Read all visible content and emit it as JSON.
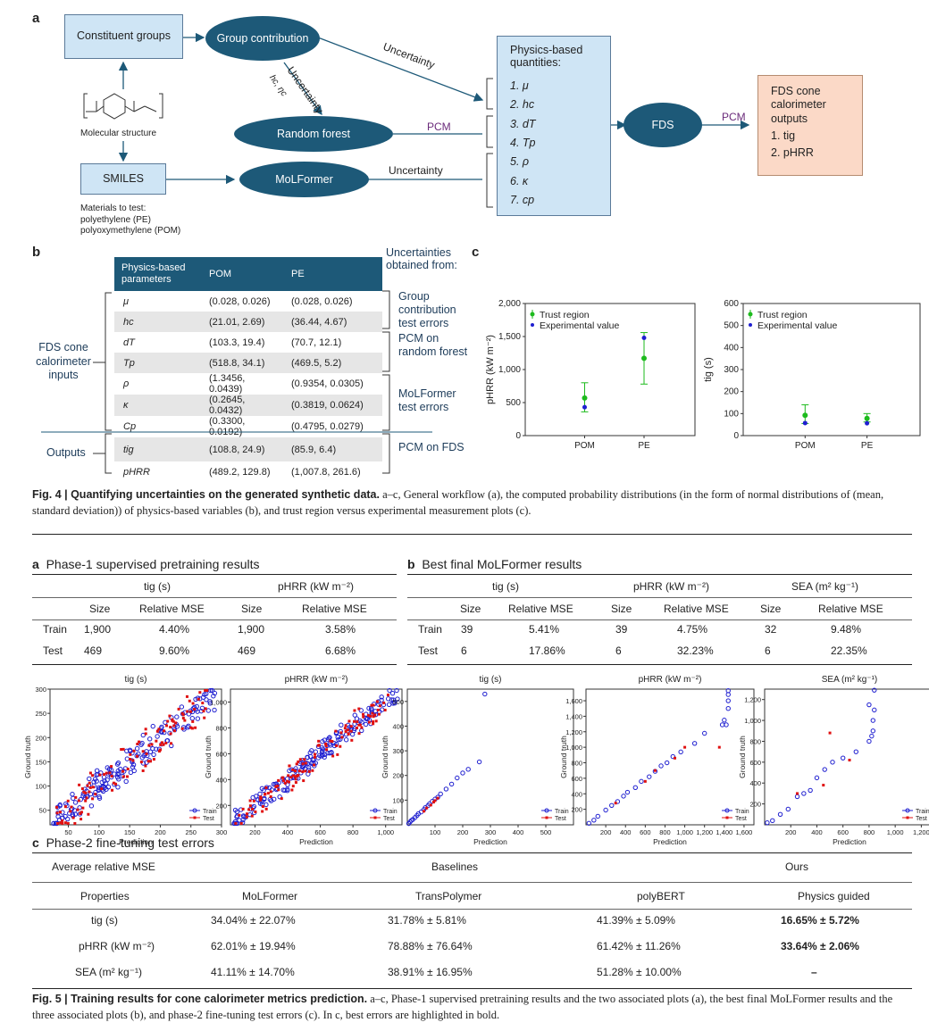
{
  "fig4": {
    "a": {
      "label": "a",
      "constituent": "Constituent groups",
      "group_contrib": "Group contribution",
      "molecular": "Molecular structure",
      "smiles": "SMILES",
      "materials_title": "Materials to test:",
      "materials": [
        "polyethylene (PE)",
        "polyoxymethylene (POM)"
      ],
      "random_forest": "Random forest",
      "molformer": "MoLFormer",
      "uncertainty": "Uncertainty",
      "hc_eta": "hc, ηc",
      "pcm": "PCM",
      "physics_title": "Physics-based quantities:",
      "physics": [
        "1.  μ",
        "2.  hc",
        "3.  dT",
        "4.  Tp",
        "5.  ρ",
        "6.  κ",
        "7.  cp"
      ],
      "fds": "FDS",
      "fds_out_title": "FDS cone calorimeter outputs",
      "fds_outputs": [
        "1.  tig",
        "2.  pHRR"
      ]
    },
    "b": {
      "label": "b",
      "header": [
        "Physics-based parameters",
        "POM",
        "PE"
      ],
      "rows": [
        [
          "μ",
          "(0.028, 0.026)",
          "(0.028, 0.026)"
        ],
        [
          "hc",
          "(21.01, 2.69)",
          "(36.44, 4.67)"
        ],
        [
          "dT",
          "(103.3, 19.4)",
          "(70.7, 12.1)"
        ],
        [
          "Tp",
          "(518.8, 34.1)",
          "(469.5, 5.2)"
        ],
        [
          "ρ",
          "(1.3456, 0.0439)",
          "(0.9354, 0.0305)"
        ],
        [
          "κ",
          "(0.2645, 0.0432)",
          "(0.3819, 0.0624)"
        ],
        [
          "Cp",
          "(0.3300, 0.0192)",
          "(0.4795, 0.0279)"
        ],
        [
          "tig",
          "(108.8, 24.9)",
          "(85.9, 6.4)"
        ],
        [
          "pHRR",
          "(489.2, 129.8)",
          "(1,007.8, 261.6)"
        ]
      ],
      "left_inputs": "FDS cone calorimeter inputs",
      "left_outputs": "Outputs",
      "unc_title": "Uncertainties obtained from:",
      "unc_groups": [
        "Group contribution test errors",
        "PCM on random forest",
        "MoLFormer test errors",
        "PCM on FDS"
      ]
    },
    "c": {
      "label": "c",
      "legend": [
        "Trust region",
        "Experimental value"
      ]
    },
    "caption_bold": "Fig. 4 | Quantifying uncertainties on the generated synthetic data.",
    "caption": " a–c, General workflow (a), the computed probability distributions (in the form of normal distributions of (mean, standard deviation)) of physics-based variables (b), and trust region versus experimental measurement plots (c)."
  },
  "chart_data": [
    {
      "type": "scatter",
      "panel": "4c-left",
      "ylabel": "pHRR (kW m⁻²)",
      "categories": [
        "POM",
        "PE"
      ],
      "ylim": [
        0,
        2000
      ],
      "yticks": [
        "0",
        "500",
        "1,000",
        "1,500",
        "2,000"
      ],
      "trust_mean": [
        570,
        1170
      ],
      "trust_low": [
        360,
        780
      ],
      "trust_high": [
        800,
        1560
      ],
      "experimental": [
        430,
        1480
      ],
      "colors": {
        "trust": "#1dbb1d",
        "exp": "#1f1fd0"
      }
    },
    {
      "type": "scatter",
      "panel": "4c-right",
      "ylabel": "tig (s)",
      "categories": [
        "POM",
        "PE"
      ],
      "ylim": [
        0,
        600
      ],
      "yticks": [
        "0",
        "100",
        "200",
        "300",
        "400",
        "500",
        "600"
      ],
      "trust_mean": [
        92,
        78
      ],
      "trust_low": [
        55,
        62
      ],
      "trust_high": [
        140,
        100
      ],
      "experimental": [
        57,
        56
      ],
      "colors": {
        "trust": "#1dbb1d",
        "exp": "#1f1fd0"
      }
    },
    {
      "type": "scatter",
      "panel": "5a-tig",
      "title": "tig (s)",
      "xlabel": "Prediction",
      "ylabel": "Ground truth",
      "xlim": [
        20,
        300
      ],
      "ylim": [
        20,
        300
      ],
      "xticks": [
        50,
        100,
        150,
        200,
        250,
        300
      ],
      "yticks": [
        50,
        100,
        150,
        200,
        250,
        300
      ],
      "xtick_labels": [
        "50",
        "100",
        "150",
        "200",
        "250",
        "300"
      ],
      "ytick_labels": [
        "50",
        "100",
        "150",
        "200",
        "250",
        "300"
      ],
      "legend": [
        "Train",
        "Test"
      ],
      "spread": 0.1,
      "n_train": 180,
      "n_test": 120
    },
    {
      "type": "scatter",
      "panel": "5a-phrr",
      "title": "pHRR (kW m⁻²)",
      "xlabel": "Prediction",
      "ylabel": "Ground truth",
      "xlim": [
        50,
        1100
      ],
      "ylim": [
        50,
        1100
      ],
      "xticks": [
        200,
        400,
        600,
        800,
        1000
      ],
      "yticks": [
        200,
        400,
        600,
        800,
        1000
      ],
      "xtick_labels": [
        "200",
        "400",
        "600",
        "800",
        "1,000"
      ],
      "ytick_labels": [
        "200",
        "400",
        "600",
        "800",
        "1,000"
      ],
      "legend": [
        "Train",
        "Test"
      ],
      "spread": 0.07,
      "n_train": 180,
      "n_test": 120
    },
    {
      "type": "scatter",
      "panel": "5b-tig",
      "title": "tig (s)",
      "xlabel": "Prediction",
      "ylabel": "Ground truth",
      "xlim": [
        0,
        600
      ],
      "ylim": [
        0,
        550
      ],
      "xticks": [
        100,
        200,
        300,
        400,
        500
      ],
      "yticks": [
        100,
        200,
        300,
        400,
        500
      ],
      "xtick_labels": [
        "100",
        "200",
        "300",
        "400",
        "500"
      ],
      "ytick_labels": [
        "100",
        "200",
        "300",
        "400",
        "500"
      ],
      "legend": [
        "Train",
        "Test"
      ],
      "train": [
        [
          5,
          5
        ],
        [
          10,
          12
        ],
        [
          15,
          18
        ],
        [
          20,
          22
        ],
        [
          28,
          30
        ],
        [
          35,
          38
        ],
        [
          40,
          45
        ],
        [
          50,
          52
        ],
        [
          60,
          62
        ],
        [
          65,
          70
        ],
        [
          75,
          78
        ],
        [
          80,
          85
        ],
        [
          90,
          95
        ],
        [
          100,
          104
        ],
        [
          110,
          112
        ],
        [
          120,
          125
        ],
        [
          140,
          145
        ],
        [
          160,
          165
        ],
        [
          180,
          190
        ],
        [
          200,
          210
        ],
        [
          220,
          225
        ],
        [
          260,
          255
        ],
        [
          280,
          530
        ]
      ],
      "test": [
        [
          60,
          55
        ],
        [
          95,
          92
        ],
        [
          100,
          98
        ],
        [
          110,
          108
        ],
        [
          70,
          68
        ],
        [
          85,
          80
        ]
      ]
    },
    {
      "type": "scatter",
      "panel": "5b-phrr",
      "title": "pHRR (kW m⁻²)",
      "xlabel": "Prediction",
      "ylabel": "Ground truth",
      "xlim": [
        0,
        1700
      ],
      "ylim": [
        0,
        1750
      ],
      "xticks": [
        200,
        400,
        600,
        800,
        1000,
        1200,
        1400,
        1600
      ],
      "yticks": [
        200,
        400,
        600,
        800,
        1000,
        1200,
        1400,
        1600
      ],
      "xtick_labels": [
        "200",
        "400",
        "600",
        "800",
        "1,000",
        "1,200",
        "1,400",
        "1,600"
      ],
      "ytick_labels": [
        "200",
        "400",
        "600",
        "800",
        "1,000",
        "1,200",
        "1,400",
        "1,600"
      ],
      "legend": [
        "Train",
        "Test"
      ],
      "train": [
        [
          30,
          20
        ],
        [
          80,
          60
        ],
        [
          120,
          110
        ],
        [
          200,
          190
        ],
        [
          260,
          250
        ],
        [
          320,
          300
        ],
        [
          380,
          370
        ],
        [
          420,
          420
        ],
        [
          500,
          480
        ],
        [
          560,
          560
        ],
        [
          640,
          620
        ],
        [
          700,
          690
        ],
        [
          760,
          760
        ],
        [
          820,
          800
        ],
        [
          880,
          880
        ],
        [
          960,
          940
        ],
        [
          1100,
          1050
        ],
        [
          1200,
          1180
        ],
        [
          1380,
          1290
        ],
        [
          1420,
          1290
        ],
        [
          1400,
          1350
        ],
        [
          1440,
          1500
        ],
        [
          1440,
          1600
        ],
        [
          1440,
          1680
        ],
        [
          1440,
          1730
        ]
      ],
      "test": [
        [
          300,
          280
        ],
        [
          600,
          560
        ],
        [
          900,
          860
        ],
        [
          1000,
          1000
        ],
        [
          1350,
          1000
        ],
        [
          700,
          700
        ]
      ]
    },
    {
      "type": "scatter",
      "panel": "5b-sea",
      "title": "SEA (m² kg⁻¹)",
      "xlabel": "Prediction",
      "ylabel": "Ground truth",
      "xlim": [
        0,
        1300
      ],
      "ylim": [
        0,
        1300
      ],
      "xticks": [
        200,
        400,
        600,
        800,
        1000,
        1200
      ],
      "yticks": [
        200,
        400,
        600,
        800,
        1000,
        1200
      ],
      "xtick_labels": [
        "200",
        "400",
        "600",
        "800",
        "1,000",
        "1,200"
      ],
      "ytick_labels": [
        "200",
        "400",
        "600",
        "800",
        "1,000",
        "1,200"
      ],
      "legend": [
        "Train",
        "Test"
      ],
      "train": [
        [
          20,
          20
        ],
        [
          60,
          40
        ],
        [
          120,
          100
        ],
        [
          180,
          150
        ],
        [
          250,
          270
        ],
        [
          300,
          300
        ],
        [
          350,
          330
        ],
        [
          400,
          450
        ],
        [
          460,
          530
        ],
        [
          520,
          600
        ],
        [
          600,
          640
        ],
        [
          700,
          700
        ],
        [
          800,
          800
        ],
        [
          820,
          850
        ],
        [
          830,
          900
        ],
        [
          830,
          1000
        ],
        [
          840,
          1100
        ],
        [
          800,
          1150
        ],
        [
          840,
          1290
        ]
      ],
      "test": [
        [
          250,
          300
        ],
        [
          450,
          380
        ],
        [
          500,
          880
        ],
        [
          650,
          620
        ]
      ]
    }
  ],
  "fig5": {
    "a": {
      "label": "a",
      "title": "Phase-1 supervised pretraining results",
      "groups": [
        "tig (s)",
        "pHRR (kW m⁻²)"
      ],
      "cols": [
        "Size",
        "Relative MSE",
        "Size",
        "Relative MSE"
      ],
      "rows": [
        [
          "Train",
          "1,900",
          "4.40%",
          "1,900",
          "3.58%"
        ],
        [
          "Test",
          "469",
          "9.60%",
          "469",
          "6.68%"
        ]
      ]
    },
    "b": {
      "label": "b",
      "title": "Best final MoLFormer results",
      "groups": [
        "tig (s)",
        "pHRR (kW m⁻²)",
        "SEA (m² kg⁻¹)"
      ],
      "cols": [
        "Size",
        "Relative MSE",
        "Size",
        "Relative MSE",
        "Size",
        "Relative MSE"
      ],
      "rows": [
        [
          "Train",
          "39",
          "5.41%",
          "39",
          "4.75%",
          "32",
          "9.48%"
        ],
        [
          "Test",
          "6",
          "17.86%",
          "6",
          "32.23%",
          "6",
          "22.35%"
        ]
      ]
    },
    "c": {
      "label": "c",
      "title": "Phase-2 fine-tuning test errors",
      "avg": "Average relative MSE",
      "baselines": "Baselines",
      "ours": "Ours",
      "header": [
        "Properties",
        "MoLFormer",
        "TransPolymer",
        "polyBERT",
        "Physics guided"
      ],
      "rows": [
        [
          "tig (s)",
          "34.04% ± 22.07%",
          "31.78% ± 5.81%",
          "41.39% ± 5.09%",
          "16.65% ± 5.72%"
        ],
        [
          "pHRR (kW m⁻²)",
          "62.01% ± 19.94%",
          "78.88% ± 76.64%",
          "61.42% ± 11.26%",
          "33.64% ± 2.06%"
        ],
        [
          "SEA (m² kg⁻¹)",
          "41.11% ± 14.70%",
          "38.91% ± 16.95%",
          "51.28% ± 10.00%",
          "–"
        ]
      ]
    },
    "caption_bold": "Fig. 5 | Training results for cone calorimeter metrics prediction.",
    "caption": " a–c, Phase-1 supervised pretraining results and the two associated plots (a), the best final MoLFormer results and the three associated plots (b), and phase-2 fine-tuning test errors (c). In c, best errors are highlighted in bold."
  }
}
